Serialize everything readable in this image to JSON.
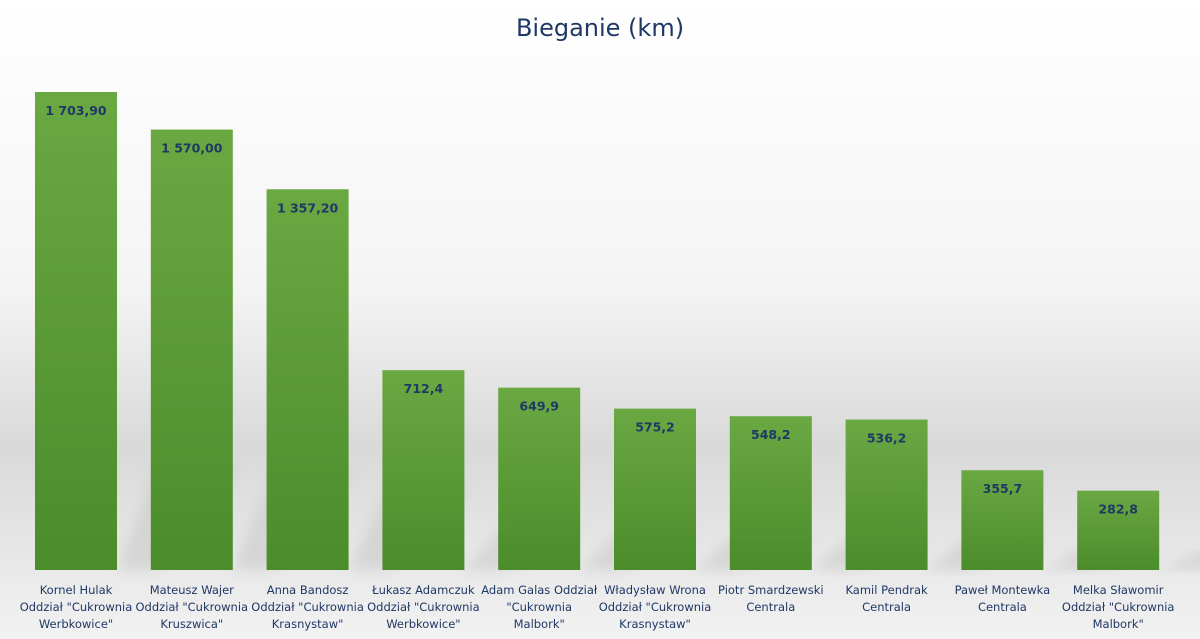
{
  "chart_data": {
    "type": "bar",
    "title": "Bieganie (km)",
    "xlabel": "",
    "ylabel": "",
    "ylim": [
      0,
      1800
    ],
    "grid": false,
    "legend": "none",
    "colors": {
      "bar_top": "#6aa842",
      "bar_bottom": "#4b8c2b",
      "text": "#1f3864",
      "shadow": "#c8c8c8"
    },
    "categories": [
      [
        "Kornel Hulak",
        "Oddział \"Cukrownia",
        "Werbkowice\""
      ],
      [
        "Mateusz Wajer",
        "Oddział \"Cukrownia",
        "Kruszwica\""
      ],
      [
        "Anna Bandosz",
        "Oddział \"Cukrownia",
        "Krasnystaw\""
      ],
      [
        "Łukasz Adamczuk",
        "Oddział \"Cukrownia",
        "Werbkowice\""
      ],
      [
        "Adam Galas Oddział",
        "\"Cukrownia",
        "Malbork\""
      ],
      [
        "Władysław Wrona",
        "Oddział \"Cukrownia",
        "Krasnystaw\""
      ],
      [
        "Piotr Smardzewski",
        "Centrala"
      ],
      [
        "Kamil Pendrak",
        "Centrala"
      ],
      [
        "Paweł Montewka",
        "Centrala"
      ],
      [
        "Melka Sławomir",
        "Oddział \"Cukrownia",
        "Malbork\""
      ]
    ],
    "values": [
      1703.9,
      1570.0,
      1357.2,
      712.4,
      649.9,
      575.2,
      548.2,
      536.2,
      355.7,
      282.8
    ],
    "value_labels": [
      "1 703,90",
      "1 570,00",
      "1 357,20",
      "712,4",
      "649,9",
      "575,2",
      "548,2",
      "536,2",
      "355,7",
      "282,8"
    ]
  }
}
